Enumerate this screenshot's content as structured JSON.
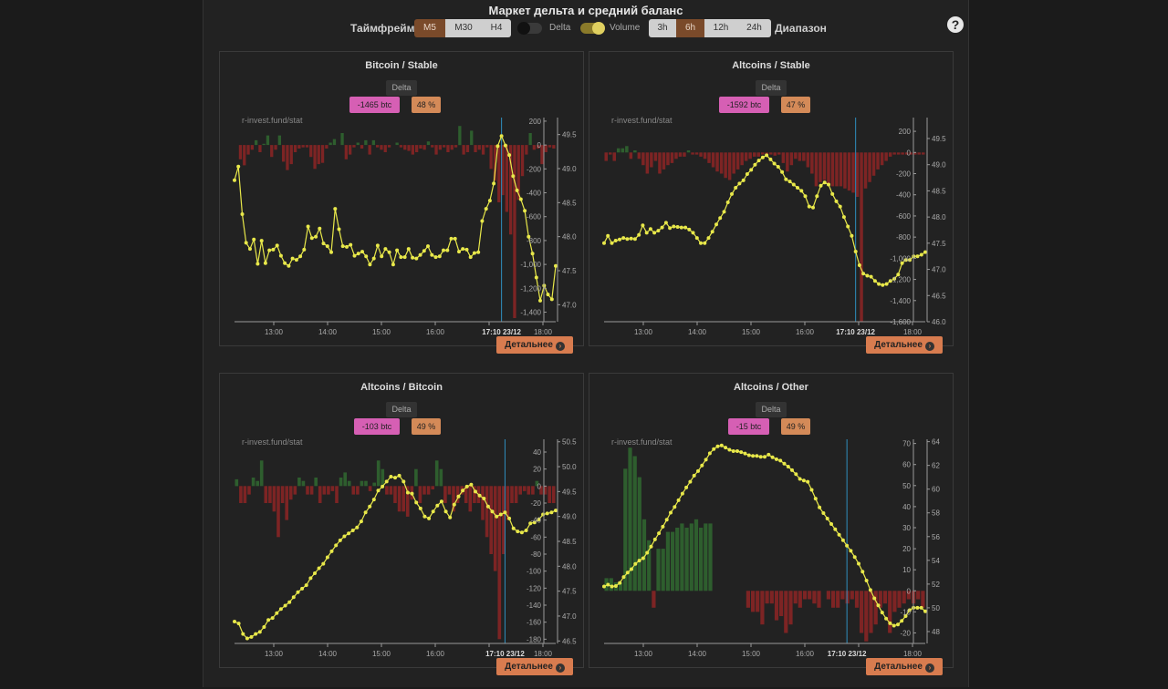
{
  "header": {
    "title": "Маркет дельта и средний баланс",
    "timeframe_label": "Таймфрейм",
    "timeframes": [
      "M5",
      "M30",
      "H4"
    ],
    "active_timeframe": "M5",
    "toggle_delta_label": "Delta",
    "toggle_volume_label": "Volume",
    "ranges": [
      "3h",
      "6h",
      "12h",
      "24h"
    ],
    "active_range": "6h",
    "range_label": "Диапазон",
    "help_icon": "?"
  },
  "colors": {
    "positive": "#2e5e2e",
    "negative": "#7d2424",
    "line": "#e8e84a",
    "cursor": "#2f8fbf",
    "badge_delta": "#d65fb4",
    "badge_balance": "#d48a58",
    "button": "#d87c4f"
  },
  "watermark": "r-invest.fund/stat",
  "more_button": "Детальнее",
  "chart_data": [
    {
      "type": "bar",
      "title": "Bitcoin / Stable",
      "delta_tag": "Delta",
      "delta_value": "-1465 btc",
      "balance_value": "48 %",
      "x_ticks": [
        "13:00",
        "14:00",
        "15:00",
        "16:00",
        "17:00",
        "18:00"
      ],
      "cursor_label": "17:10 23/12",
      "bar_axis_ticks": [
        "200",
        "0",
        "-200",
        "-400",
        "-600",
        "-800",
        "-1,000",
        "-1,200",
        "-1,400"
      ],
      "bar_ylim": [
        -1480,
        230
      ],
      "line_axis_ticks": [
        "49.5",
        "49.0",
        "48.5",
        "48.0",
        "47.5",
        "47.0"
      ],
      "line_ylim": [
        46.75,
        49.75
      ],
      "bars": [
        0,
        -120,
        -170,
        -80,
        -40,
        40,
        -60,
        10,
        80,
        -100,
        -40,
        80,
        -140,
        -210,
        -160,
        -60,
        -30,
        -20,
        -20,
        -100,
        -200,
        -160,
        -150,
        -30,
        20,
        50,
        0,
        100,
        -120,
        -80,
        -20,
        20,
        -30,
        40,
        -80,
        40,
        -20,
        -40,
        -60,
        -20,
        0,
        20,
        -20,
        -40,
        -50,
        -80,
        -60,
        -30,
        -40,
        30,
        -20,
        -80,
        -40,
        -20,
        -60,
        -40,
        -20,
        160,
        -80,
        -60,
        120,
        -60,
        -40,
        -80,
        -20,
        -200,
        -300,
        -480,
        -420,
        -560,
        -750,
        -1450,
        -460,
        -260,
        -80,
        100,
        -40,
        -30,
        -160,
        -60,
        -20,
        -30
      ],
      "line": [
        48.83,
        49.03,
        48.33,
        47.91,
        47.82,
        47.96,
        47.6,
        47.94,
        47.61,
        47.8,
        47.81,
        47.87,
        47.72,
        47.61,
        47.57,
        47.68,
        47.66,
        47.71,
        47.81,
        48.15,
        47.98,
        48.0,
        48.12,
        47.9,
        47.86,
        47.77,
        48.41,
        48.11,
        47.86,
        47.85,
        47.88,
        47.72,
        47.75,
        47.78,
        47.71,
        47.59,
        47.68,
        47.87,
        47.71,
        47.82,
        47.77,
        47.59,
        47.8,
        47.7,
        47.7,
        47.82,
        47.69,
        47.68,
        47.73,
        47.79,
        47.86,
        47.73,
        47.7,
        47.71,
        47.8,
        47.8,
        47.97,
        47.97,
        47.78,
        47.82,
        47.81,
        47.7,
        47.76,
        47.77,
        48.23,
        48.41,
        48.53,
        48.78,
        49.33,
        49.48,
        49.34,
        49.2,
        48.89,
        48.68,
        48.55,
        48.38,
        48.0,
        47.75,
        47.4,
        47.06,
        47.28,
        47.15,
        47.08,
        47.57
      ],
      "cursor_index": 69
    },
    {
      "type": "bar",
      "title": "Altcoins / Stable",
      "delta_tag": "Delta",
      "delta_value": "-1592 btc",
      "balance_value": "47 %",
      "x_ticks": [
        "13:00",
        "14:00",
        "15:00",
        "16:00",
        "17:00",
        "18:00"
      ],
      "cursor_label": "17:10 23/12",
      "bar_axis_ticks": [
        "200",
        "0",
        "-200",
        "-400",
        "-600",
        "-800",
        "-1,000",
        "-1,200",
        "-1,400",
        "-1,600"
      ],
      "bar_ylim": [
        -1600,
        330
      ],
      "line_axis_ticks": [
        "49.5",
        "49.0",
        "48.5",
        "48.0",
        "47.5",
        "47.0",
        "46.5",
        "46.0"
      ],
      "line_ylim": [
        46.0,
        49.9
      ],
      "bars": [
        -80,
        -20,
        -80,
        40,
        40,
        60,
        -60,
        20,
        -60,
        -120,
        -200,
        -140,
        -80,
        -200,
        -160,
        -120,
        -100,
        -60,
        -40,
        -40,
        20,
        -20,
        -20,
        -40,
        -60,
        -100,
        -140,
        -180,
        -200,
        -240,
        -260,
        -200,
        -160,
        -120,
        -80,
        -60,
        -40,
        -40,
        -20,
        -20,
        -20,
        -30,
        -20,
        -100,
        -180,
        -120,
        -60,
        -80,
        -80,
        -140,
        -200,
        -320,
        -280,
        -260,
        -300,
        -320,
        -320,
        -320,
        -340,
        -360,
        -380,
        -420,
        -1600,
        -340,
        -280,
        -220,
        -160,
        -120,
        -80,
        -40,
        -20,
        -20,
        -20,
        -20,
        -20,
        -20,
        -20,
        -20
      ],
      "line": [
        47.5,
        47.64,
        47.5,
        47.55,
        47.57,
        47.6,
        47.58,
        47.59,
        47.58,
        47.66,
        47.84,
        47.7,
        47.77,
        47.7,
        47.74,
        47.8,
        47.89,
        47.79,
        47.82,
        47.81,
        47.8,
        47.8,
        47.76,
        47.7,
        47.6,
        47.5,
        47.5,
        47.6,
        47.72,
        47.86,
        47.98,
        48.1,
        48.28,
        48.44,
        48.56,
        48.64,
        48.7,
        48.82,
        48.9,
        49.0,
        49.08,
        49.14,
        49.18,
        49.1,
        49.02,
        48.96,
        48.86,
        48.72,
        48.68,
        48.62,
        48.56,
        48.5,
        48.4,
        48.2,
        48.18,
        48.4,
        48.6,
        48.66,
        48.62,
        48.44,
        48.3,
        48.2,
        48.0,
        47.82,
        47.64,
        47.34,
        47.08,
        46.92,
        46.88,
        46.86,
        46.78,
        46.72,
        46.7,
        46.72,
        46.78,
        46.82,
        46.9,
        47.12,
        47.18,
        47.18,
        47.25,
        47.25,
        47.28,
        47.33
      ],
      "cursor_index": 65
    },
    {
      "type": "bar",
      "title": "Altcoins / Bitcoin",
      "delta_tag": "Delta",
      "delta_value": "-103 btc",
      "balance_value": "49 %",
      "x_ticks": [
        "13:00",
        "14:00",
        "15:00",
        "16:00",
        "17:00",
        "18:00"
      ],
      "cursor_label": "17:10 23/12",
      "bar_axis_ticks": [
        "40",
        "20",
        "0",
        "-20",
        "-40",
        "-60",
        "-80",
        "-100",
        "-120",
        "-140",
        "-160",
        "-180"
      ],
      "bar_ylim": [
        -185,
        55
      ],
      "line_axis_ticks": [
        "50.5",
        "50.0",
        "49.5",
        "49.0",
        "48.5",
        "48.0",
        "47.5",
        "47.0",
        "46.5"
      ],
      "line_ylim": [
        46.45,
        50.55
      ],
      "bars": [
        8,
        -20,
        -20,
        -10,
        10,
        6,
        30,
        -20,
        -20,
        -30,
        -60,
        -20,
        -40,
        -16,
        -10,
        10,
        6,
        -10,
        -10,
        10,
        -20,
        -10,
        -10,
        -6,
        -20,
        10,
        16,
        6,
        -10,
        -10,
        6,
        6,
        -6,
        4,
        30,
        20,
        -10,
        -10,
        -20,
        -30,
        -30,
        -36,
        -16,
        20,
        -20,
        -10,
        -10,
        -4,
        30,
        20,
        -20,
        -10,
        -30,
        -20,
        -10,
        -20,
        -30,
        -20,
        -20,
        -40,
        -60,
        -80,
        -100,
        -180,
        -80,
        -40,
        -20,
        -20,
        -10,
        -6,
        -10,
        -10,
        6,
        -10,
        -10,
        -20,
        -20
      ],
      "line": [
        46.89,
        46.85,
        46.64,
        46.55,
        46.58,
        46.64,
        46.68,
        46.78,
        46.92,
        46.96,
        47.06,
        47.14,
        47.21,
        47.28,
        47.38,
        47.48,
        47.55,
        47.62,
        47.76,
        47.86,
        47.96,
        48.05,
        48.18,
        48.3,
        48.42,
        48.52,
        48.6,
        48.66,
        48.72,
        48.78,
        48.9,
        49.08,
        49.2,
        49.34,
        49.52,
        49.6,
        49.7,
        49.8,
        49.78,
        49.82,
        49.7,
        49.48,
        49.46,
        49.28,
        49.16,
        49.0,
        48.96,
        49.1,
        49.22,
        49.3,
        49.1,
        48.98,
        49.24,
        49.4,
        49.52,
        49.6,
        49.64,
        49.5,
        49.42,
        49.36,
        49.2,
        49.1,
        49.0,
        49.04,
        49.08,
        48.96,
        48.76,
        48.7,
        48.68,
        48.72,
        48.86,
        48.88,
        48.94,
        49.04,
        49.06,
        49.08,
        49.12
      ],
      "cursor_index": 64
    },
    {
      "type": "bar",
      "title": "Altcoins / Other",
      "delta_tag": "Delta",
      "delta_value": "-15 btc",
      "balance_value": "49 %",
      "x_ticks": [
        "13:00",
        "14:00",
        "15:00",
        "16:00",
        "17:00",
        "18:00"
      ],
      "cursor_label": "17:10 23/12",
      "bar_axis_ticks": [
        "70",
        "60",
        "50",
        "40",
        "30",
        "20",
        "10",
        "0",
        "-10",
        "-20"
      ],
      "bar_ylim": [
        -25,
        72
      ],
      "line_axis_ticks": [
        "64",
        "62",
        "60",
        "58",
        "56",
        "54",
        "52",
        "50",
        "48"
      ],
      "line_ylim": [
        47.0,
        64.2
      ],
      "bars": [
        6,
        6,
        4,
        4,
        58,
        68,
        64,
        54,
        34,
        24,
        -8,
        20,
        20,
        28,
        28,
        30,
        32,
        30,
        32,
        34,
        30,
        32,
        32,
        0,
        0,
        0,
        0,
        0,
        0,
        0,
        -8,
        -10,
        -10,
        -16,
        -6,
        -6,
        -14,
        -12,
        -20,
        -16,
        -6,
        -8,
        -4,
        -4,
        -6,
        -8,
        0,
        -4,
        -8,
        -8,
        -4,
        -6,
        -4,
        -8,
        -20,
        -24,
        -20,
        -16,
        -8,
        -6,
        -20,
        -10,
        -8,
        -6,
        -4,
        -6,
        -4,
        -8
      ],
      "line": [
        51.8,
        51.95,
        51.8,
        51.84,
        52.1,
        52.6,
        52.97,
        53.26,
        53.7,
        53.98,
        54.18,
        54.64,
        55.16,
        55.76,
        56.28,
        56.84,
        57.42,
        58.02,
        58.5,
        59.06,
        59.62,
        60.14,
        60.62,
        61.14,
        61.52,
        62.0,
        62.48,
        63.02,
        63.38,
        63.6,
        63.68,
        63.5,
        63.32,
        63.2,
        63.2,
        63.12,
        63.0,
        62.86,
        62.8,
        62.8,
        62.72,
        62.72,
        62.9,
        62.68,
        62.52,
        62.4,
        62.14,
        61.9,
        61.6,
        61.26,
        60.86,
        60.72,
        60.62,
        59.94,
        59.2,
        58.46,
        57.98,
        57.52,
        57.06,
        56.62,
        56.16,
        55.7,
        55.24,
        54.8,
        54.28,
        53.72,
        53.04,
        52.3,
        51.5,
        50.8,
        50.2,
        49.6,
        49.1,
        48.7,
        48.5,
        48.6,
        48.9,
        49.3,
        49.8,
        50.0,
        50.0,
        50.0,
        49.7
      ],
      "cursor_index": 62
    }
  ]
}
